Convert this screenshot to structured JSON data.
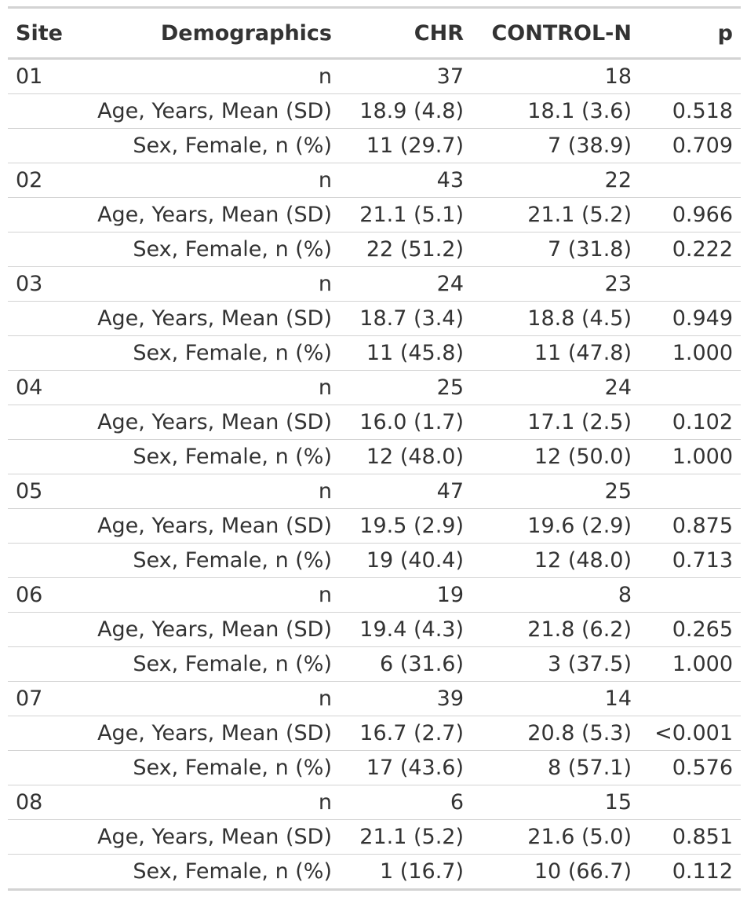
{
  "header": {
    "site": "Site",
    "demographics": "Demographics",
    "chr": "CHR",
    "control": "CONTROL-N",
    "p": "p"
  },
  "rows": [
    {
      "site": "01",
      "demographic": "n",
      "chr": "37",
      "control": "18",
      "p": ""
    },
    {
      "site": "",
      "demographic": "Age, Years, Mean (SD)",
      "chr": "18.9 (4.8)",
      "control": "18.1 (3.6)",
      "p": "0.518"
    },
    {
      "site": "",
      "demographic": "Sex, Female, n (%)",
      "chr": "11 (29.7)",
      "control": "7 (38.9)",
      "p": "0.709"
    },
    {
      "site": "02",
      "demographic": "n",
      "chr": "43",
      "control": "22",
      "p": ""
    },
    {
      "site": "",
      "demographic": "Age, Years, Mean (SD)",
      "chr": "21.1 (5.1)",
      "control": "21.1 (5.2)",
      "p": "0.966"
    },
    {
      "site": "",
      "demographic": "Sex, Female, n (%)",
      "chr": "22 (51.2)",
      "control": "7 (31.8)",
      "p": "0.222"
    },
    {
      "site": "03",
      "demographic": "n",
      "chr": "24",
      "control": "23",
      "p": ""
    },
    {
      "site": "",
      "demographic": "Age, Years, Mean (SD)",
      "chr": "18.7 (3.4)",
      "control": "18.8 (4.5)",
      "p": "0.949"
    },
    {
      "site": "",
      "demographic": "Sex, Female, n (%)",
      "chr": "11 (45.8)",
      "control": "11 (47.8)",
      "p": "1.000"
    },
    {
      "site": "04",
      "demographic": "n",
      "chr": "25",
      "control": "24",
      "p": ""
    },
    {
      "site": "",
      "demographic": "Age, Years, Mean (SD)",
      "chr": "16.0 (1.7)",
      "control": "17.1 (2.5)",
      "p": "0.102"
    },
    {
      "site": "",
      "demographic": "Sex, Female, n (%)",
      "chr": "12 (48.0)",
      "control": "12 (50.0)",
      "p": "1.000"
    },
    {
      "site": "05",
      "demographic": "n",
      "chr": "47",
      "control": "25",
      "p": ""
    },
    {
      "site": "",
      "demographic": "Age, Years, Mean (SD)",
      "chr": "19.5 (2.9)",
      "control": "19.6 (2.9)",
      "p": "0.875"
    },
    {
      "site": "",
      "demographic": "Sex, Female, n (%)",
      "chr": "19 (40.4)",
      "control": "12 (48.0)",
      "p": "0.713"
    },
    {
      "site": "06",
      "demographic": "n",
      "chr": "19",
      "control": "8",
      "p": ""
    },
    {
      "site": "",
      "demographic": "Age, Years, Mean (SD)",
      "chr": "19.4 (4.3)",
      "control": "21.8 (6.2)",
      "p": "0.265"
    },
    {
      "site": "",
      "demographic": "Sex, Female, n (%)",
      "chr": "6 (31.6)",
      "control": "3 (37.5)",
      "p": "1.000"
    },
    {
      "site": "07",
      "demographic": "n",
      "chr": "39",
      "control": "14",
      "p": ""
    },
    {
      "site": "",
      "demographic": "Age, Years, Mean (SD)",
      "chr": "16.7 (2.7)",
      "control": "20.8 (5.3)",
      "p": "<0.001"
    },
    {
      "site": "",
      "demographic": "Sex, Female, n (%)",
      "chr": "17 (43.6)",
      "control": "8 (57.1)",
      "p": "0.576"
    },
    {
      "site": "08",
      "demographic": "n",
      "chr": "6",
      "control": "15",
      "p": ""
    },
    {
      "site": "",
      "demographic": "Age, Years, Mean (SD)",
      "chr": "21.1 (5.2)",
      "control": "21.6 (5.0)",
      "p": "0.851"
    },
    {
      "site": "",
      "demographic": "Sex, Female, n (%)",
      "chr": "1 (16.7)",
      "control": "10 (66.7)",
      "p": "0.112"
    }
  ]
}
